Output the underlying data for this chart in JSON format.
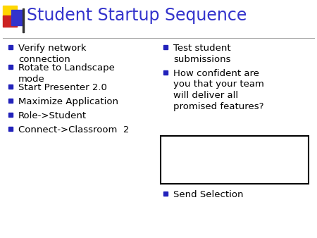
{
  "title": "Student Startup Sequence",
  "title_color": "#3333cc",
  "title_fontsize": 17,
  "background_color": "#ffffff",
  "left_bullets": [
    "Verify network\nconnection",
    "Rotate to Landscape\nmode",
    "Start Presenter 2.0",
    "Maximize Application",
    "Role->Student",
    "Connect->Classroom  2"
  ],
  "right_bullets": [
    "Test student\nsubmissions",
    "How confident are\nyou that your team\nwill deliver all\npromised features?"
  ],
  "right_bottom_bullet": "Send Selection",
  "bullet_color": "#2222bb",
  "text_color": "#000000",
  "bullet_fontsize": 9.5,
  "accent_yellow": "#FFD700",
  "accent_red": "#CC2222",
  "accent_blue": "#3333cc",
  "divider_color": "#aaaaaa",
  "box_edge_color": "#000000",
  "figw": 4.5,
  "figh": 3.38,
  "dpi": 100
}
